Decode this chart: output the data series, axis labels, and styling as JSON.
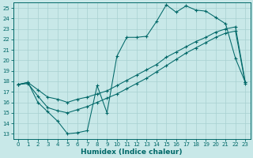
{
  "xlabel": "Humidex (Indice chaleur)",
  "bg_color": "#c8e8e8",
  "line_color": "#006868",
  "grid_color": "#a8d0d0",
  "xlim": [
    -0.5,
    23.5
  ],
  "ylim": [
    12.5,
    25.5
  ],
  "xticks": [
    0,
    1,
    2,
    3,
    4,
    5,
    6,
    7,
    8,
    9,
    10,
    11,
    12,
    13,
    14,
    15,
    16,
    17,
    18,
    19,
    20,
    21,
    22,
    23
  ],
  "yticks": [
    13,
    14,
    15,
    16,
    17,
    18,
    19,
    20,
    21,
    22,
    23,
    24,
    25
  ],
  "line1_x": [
    0,
    1,
    2,
    3,
    4,
    5,
    6,
    7,
    8,
    9,
    10,
    11,
    12,
    13,
    14,
    15,
    16,
    17,
    18,
    19,
    20,
    21,
    22,
    23
  ],
  "line1_y": [
    17.7,
    17.9,
    16.0,
    15.1,
    14.2,
    13.0,
    13.1,
    13.3,
    17.6,
    15.0,
    20.4,
    22.2,
    22.2,
    22.3,
    23.7,
    25.3,
    24.6,
    25.2,
    24.8,
    24.7,
    24.1,
    23.5,
    20.2,
    17.9
  ],
  "line2_x": [
    0,
    1,
    2,
    3,
    4,
    5,
    6,
    7,
    8,
    9,
    10,
    11,
    12,
    13,
    14,
    15,
    16,
    17,
    18,
    19,
    20,
    21,
    22,
    23
  ],
  "line2_y": [
    17.7,
    17.9,
    17.2,
    16.5,
    16.3,
    16.0,
    16.3,
    16.5,
    16.8,
    17.1,
    17.6,
    18.1,
    18.6,
    19.1,
    19.6,
    20.3,
    20.8,
    21.3,
    21.8,
    22.2,
    22.7,
    23.0,
    23.2,
    17.9
  ],
  "line3_x": [
    0,
    1,
    2,
    3,
    4,
    5,
    6,
    7,
    8,
    9,
    10,
    11,
    12,
    13,
    14,
    15,
    16,
    17,
    18,
    19,
    20,
    21,
    22,
    23
  ],
  "line3_y": [
    17.7,
    17.8,
    16.6,
    15.5,
    15.2,
    15.0,
    15.3,
    15.6,
    16.0,
    16.4,
    16.8,
    17.3,
    17.8,
    18.3,
    18.9,
    19.5,
    20.1,
    20.7,
    21.2,
    21.7,
    22.2,
    22.6,
    22.8,
    17.8
  ],
  "tick_fontsize": 5.0,
  "xlabel_fontsize": 6.5
}
